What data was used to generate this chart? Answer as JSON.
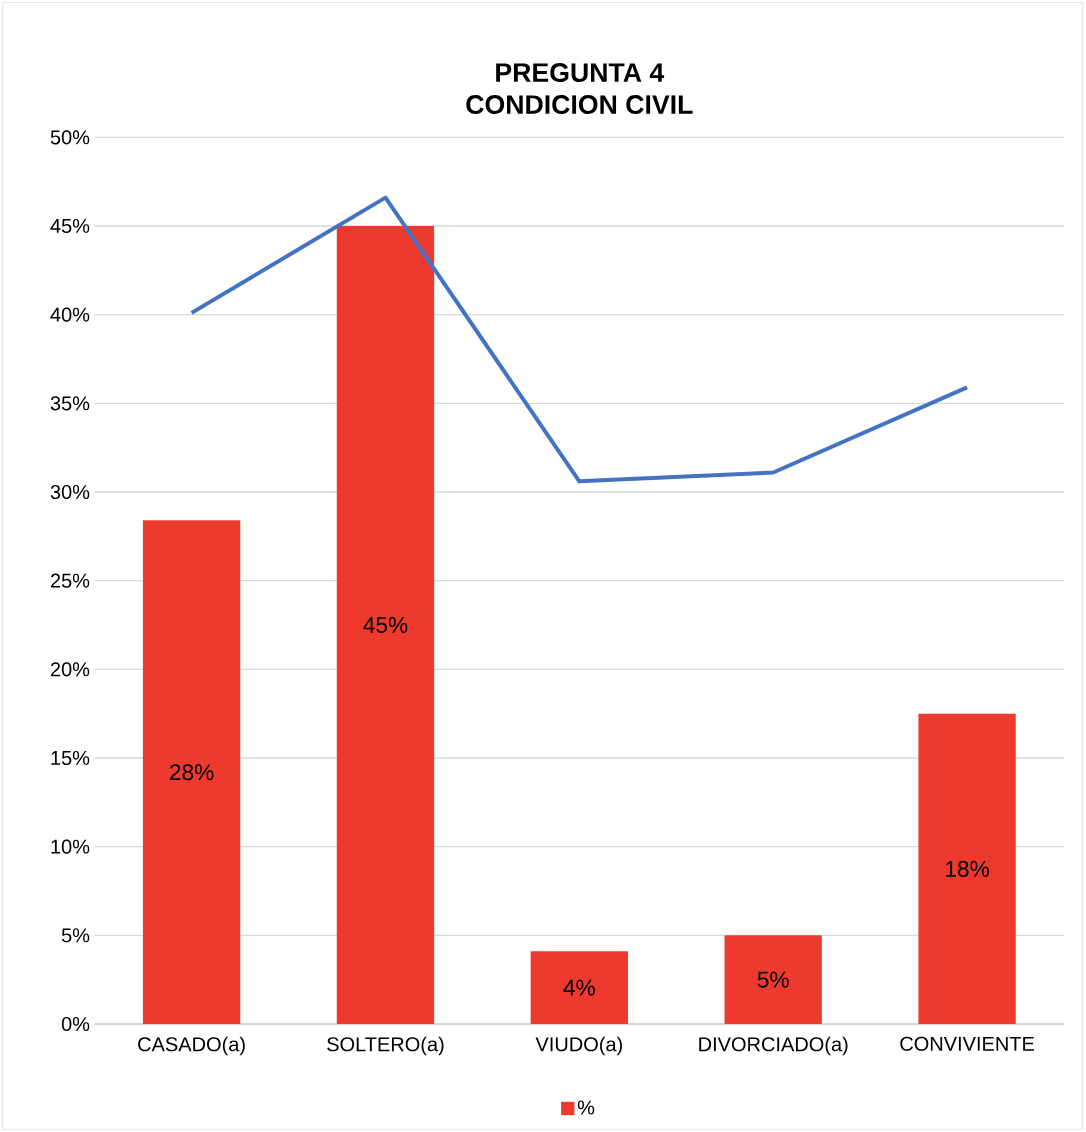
{
  "chart_data": {
    "type": "bar",
    "title": "PREGUNTA 4\nCONDICION CIVIL",
    "categories": [
      "CASADO(a)",
      "SOLTERO(a)",
      "VIUDO(a)",
      "DIVORCIADO(a)",
      "CONVIVIENTE"
    ],
    "series": [
      {
        "name": "%",
        "color": "#ee3a2e",
        "values": [
          28.4,
          45.0,
          4.1,
          5.0,
          17.5
        ],
        "value_labels": [
          "28%",
          "45%",
          "4%",
          "5%",
          "18%"
        ]
      },
      {
        "type": "line",
        "color": "#4472c4",
        "values": [
          40.1,
          46.6,
          30.6,
          31.1,
          35.9
        ]
      }
    ],
    "ylim": [
      0,
      50
    ],
    "yticks": [
      {
        "value": 0,
        "label": "0%"
      },
      {
        "value": 5,
        "label": "5%"
      },
      {
        "value": 10,
        "label": "10%"
      },
      {
        "value": 15,
        "label": "15%"
      },
      {
        "value": 20,
        "label": "20%"
      },
      {
        "value": 25,
        "label": "25%"
      },
      {
        "value": 30,
        "label": "30%"
      },
      {
        "value": 35,
        "label": "35%"
      },
      {
        "value": 40,
        "label": "40%"
      },
      {
        "value": 45,
        "label": "45%"
      },
      {
        "value": 50,
        "label": "50%"
      }
    ],
    "grid": "y",
    "legend": "bottom"
  }
}
